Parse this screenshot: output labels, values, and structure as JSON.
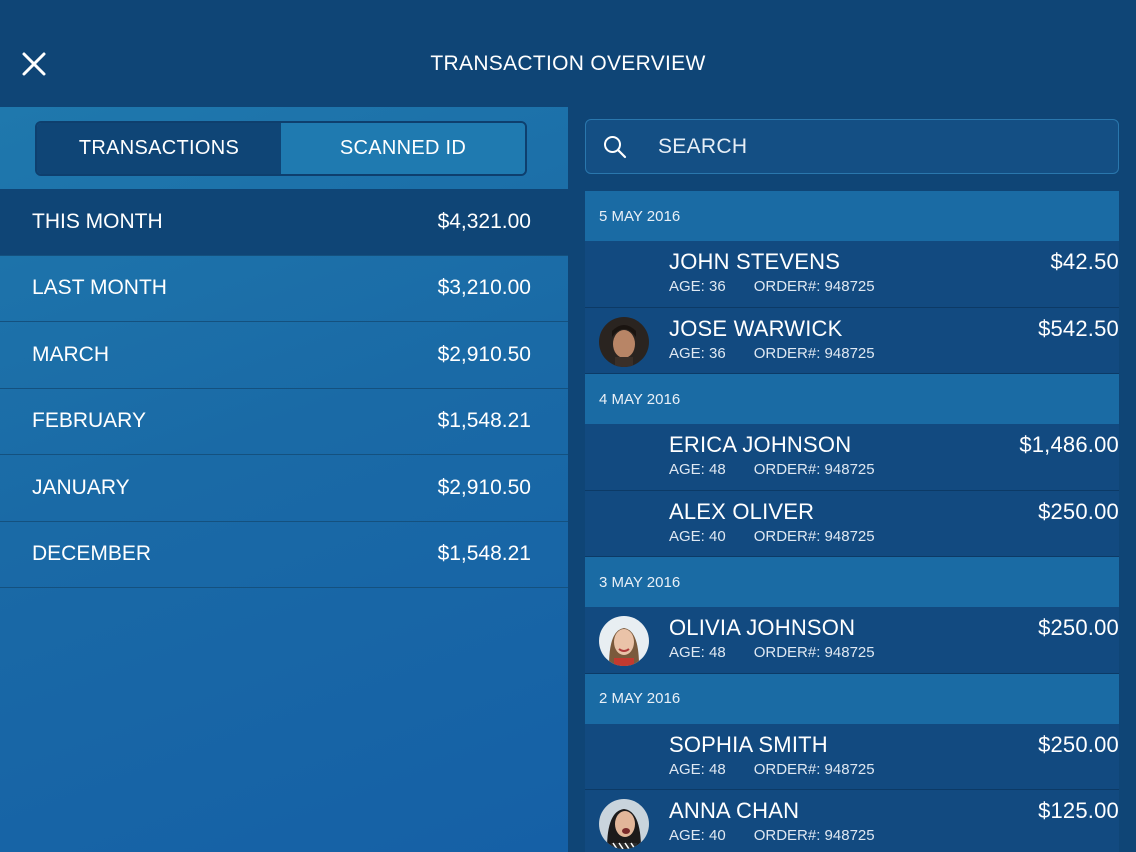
{
  "header": {
    "title": "TRANSACTION OVERVIEW",
    "close_icon": "close-icon"
  },
  "tabs": {
    "transactions": "TRANSACTIONS",
    "scanned_id": "SCANNED ID",
    "active": "transactions"
  },
  "months": [
    {
      "label": "THIS MONTH",
      "amount": "$4,321.00"
    },
    {
      "label": "LAST MONTH",
      "amount": "$3,210.00"
    },
    {
      "label": "MARCH",
      "amount": "$2,910.50"
    },
    {
      "label": "FEBRUARY",
      "amount": "$1,548.21"
    },
    {
      "label": "JANUARY",
      "amount": "$2,910.50"
    },
    {
      "label": "DECEMBER",
      "amount": "$1,548.21"
    }
  ],
  "search": {
    "placeholder": "SEARCH",
    "icon": "search-icon"
  },
  "groups": [
    {
      "date": "5 MAY 2016",
      "items": [
        {
          "name": "JOHN STEVENS",
          "age": "AGE: 36",
          "order": "ORDER#: 948725",
          "amount": "$42.50"
        },
        {
          "name": "JOSE WARWICK",
          "age": "AGE: 36",
          "order": "ORDER#: 948725",
          "amount": "$542.50"
        }
      ]
    },
    {
      "date": "4 MAY 2016",
      "items": [
        {
          "name": "ERICA JOHNSON",
          "age": "AGE: 48",
          "order": "ORDER#: 948725",
          "amount": "$1,486.00"
        },
        {
          "name": "ALEX OLIVER",
          "age": "AGE: 40",
          "order": "ORDER#: 948725",
          "amount": "$250.00"
        }
      ]
    },
    {
      "date": "3 MAY 2016",
      "items": [
        {
          "name": "OLIVIA JOHNSON",
          "age": "AGE: 48",
          "order": "ORDER#: 948725",
          "amount": "$250.00"
        }
      ]
    },
    {
      "date": "2 MAY 2016",
      "items": [
        {
          "name": "SOPHIA SMITH",
          "age": "AGE: 48",
          "order": "ORDER#: 948725",
          "amount": "$250.00"
        },
        {
          "name": "ANNA CHAN",
          "age": "AGE: 40",
          "order": "ORDER#: 948725",
          "amount": "$125.00"
        }
      ]
    }
  ],
  "colors": {
    "header_bg": "#0f4576",
    "left_panel": "#1a6aa6",
    "date_band": "#1a6ba4"
  }
}
